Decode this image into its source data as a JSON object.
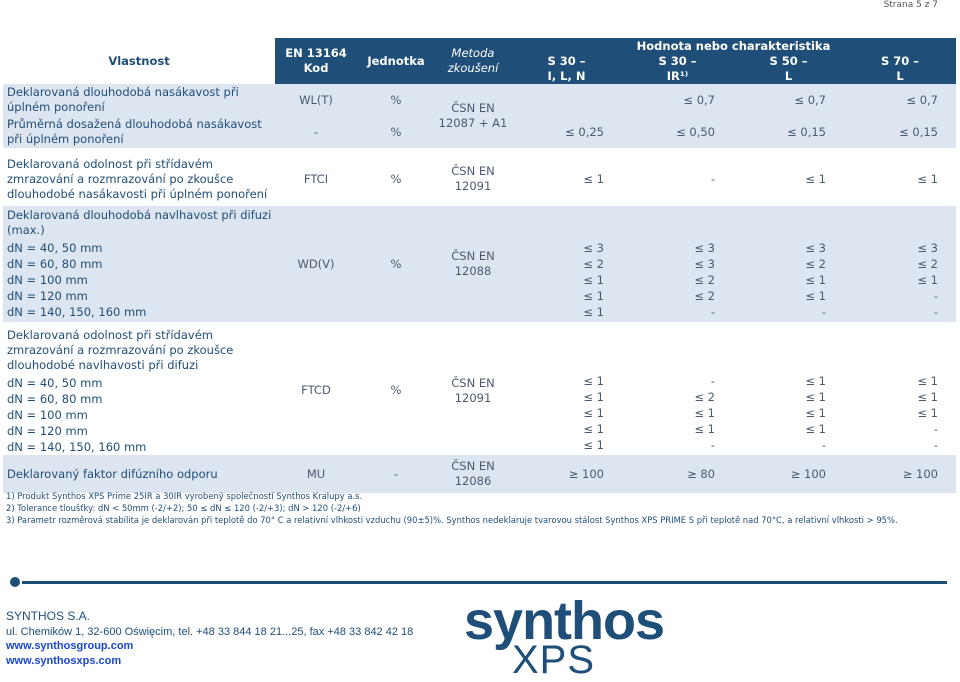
{
  "page_number": "Strana 5 z 7",
  "header": {
    "property": "Vlastnost",
    "code": "EN 13164\nKod",
    "unit": "Jednotka",
    "method": "Metoda\nzkoušení",
    "value_group": "Hodnota nebo charakteristika",
    "columns": [
      "S 30 –\nI, L, N",
      "S 30 –\nIR¹⁾",
      "S 50 –\nL",
      "S 70 –\nL"
    ]
  },
  "rows": [
    {
      "property": "Deklarovaná dlouhodobá nasákavost při úplném ponoření",
      "code": "WL(T)",
      "unit": "%",
      "method": "ČSN EN\n12087 + A1",
      "values": [
        [
          "",
          "≤ 0,7",
          "≤ 0,7",
          "≤ 0,7"
        ]
      ]
    },
    {
      "property": "Průměrná dosažená dlouhodobá nasákavost při úplném ponoření",
      "code": "-",
      "unit": "%",
      "method": "",
      "values": [
        [
          "≤ 0,25",
          "≤ 0,50",
          "≤ 0,15",
          "≤ 0,15"
        ]
      ]
    },
    {
      "property": "Deklarovaná odolnost při střídavém zmrazování a rozmrazování po zkoušce dlouhodobé nasákavosti při úplném ponoření",
      "code": "FTCI",
      "unit": "%",
      "method": "ČSN EN\n12091",
      "values": [
        [
          "≤ 1",
          "-",
          "≤ 1",
          "≤ 1"
        ]
      ]
    },
    {
      "property": "Deklarovaná dlouhodobá navlhavost při difuzi (max.)",
      "subs": [
        "dN = 40, 50 mm",
        "dN = 60, 80 mm",
        "dN = 100 mm",
        "dN = 120 mm",
        "dN = 140, 150, 160 mm"
      ],
      "code": "WD(V)",
      "unit": "%",
      "method": "ČSN EN\n12088",
      "values": [
        [
          "≤ 3",
          "≤ 2",
          "≤ 1",
          "≤ 1",
          "≤ 1"
        ],
        [
          "≤ 3",
          "≤ 3",
          "≤ 2",
          "≤ 2",
          "-"
        ],
        [
          "≤ 3",
          "≤ 2",
          "≤ 1",
          "≤ 1",
          "-"
        ],
        [
          "≤ 3",
          "≤ 2",
          "≤ 1",
          "-",
          "-"
        ]
      ]
    },
    {
      "property": "Deklarovaná odolnost při střídavém zmrazování a rozmrazování po zkoušce dlouhodobé navlhavosti při difuzi",
      "subs": [
        "dN = 40, 50 mm",
        "dN = 60, 80 mm",
        "dN = 100 mm",
        "dN = 120 mm",
        "dN = 140, 150, 160 mm"
      ],
      "code": "FTCD",
      "unit": "%",
      "method": "ČSN EN\n12091",
      "values": [
        [
          "≤ 1",
          "≤ 1",
          "≤ 1",
          "≤ 1",
          "≤ 1"
        ],
        [
          "-",
          "≤ 2",
          "≤ 1",
          "≤ 1",
          "-"
        ],
        [
          "≤ 1",
          "≤ 1",
          "≤ 1",
          "≤ 1",
          "-"
        ],
        [
          "≤ 1",
          "≤ 1",
          "≤ 1",
          "-",
          "-"
        ]
      ]
    },
    {
      "property": "Deklarovaný faktor difúzního odporu",
      "code": "MU",
      "unit": "-",
      "method": "ČSN EN\n12086",
      "values": [
        [
          "≥ 100",
          "≥ 80",
          "≥ 100",
          "≥ 100"
        ]
      ]
    }
  ],
  "footnotes": [
    "1)   Produkt Synthos XPS Prime 25IR a 30IR vyrobený společností Synthos Kralupy a.s.",
    "2)   Tolerance tloušťky: dN < 50mm (-2/+2);    50 ≤ dN ≤ 120 (-2/+3);    dN > 120 (-2/+6)",
    "3)   Parametr rozměrová stabilita je deklarován při teplotě do 70° C a relativní vlhkosti vzduchu (90±5)%. Synthos nedeklaruje tvarovou stálost Synthos XPS PRIME S při teplotě nad 70°C, a relativní vlhkosti > 95%."
  ],
  "company": {
    "name": "SYNTHOS S.A.",
    "address": "ul. Chemików 1, 32-600 Oświęcim, tel. +48 33 844 18 21...25, fax +48 33 842 42 18",
    "web1": "www.synthosgroup.com",
    "web2": "www.synthosxps.com"
  },
  "logo": {
    "main": "synthos",
    "sub": "XPS"
  },
  "colors": {
    "header_bg": "#1f4e79",
    "row_alt_bg": "#dde5f0",
    "link": "#1a47d0"
  }
}
